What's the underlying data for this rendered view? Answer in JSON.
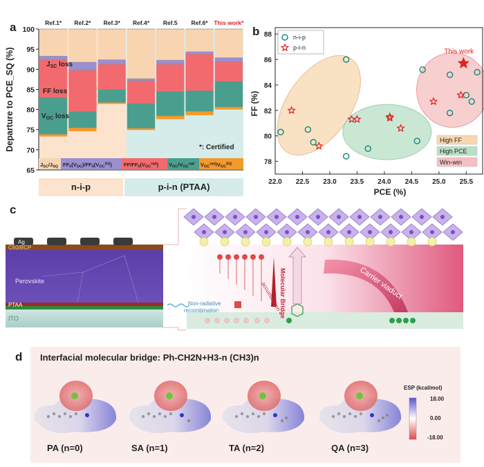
{
  "panel_a": {
    "letter": "a",
    "refs": [
      "Ref.1*",
      "Ref.2*",
      "Ref.3*",
      "Ref.4*",
      "Ref.5",
      "Ref.6*",
      "This work*"
    ],
    "ylabel": "Departure to PCE_SQ (%)",
    "yticks": [
      "65",
      "70",
      "75",
      "80",
      "85",
      "90",
      "95",
      "100"
    ],
    "loss_labels": [
      "J_SC loss",
      "FF loss",
      "V_OC loss"
    ],
    "certified_note": "*: Certified",
    "legend": [
      "J_SC/J_SQ",
      "FF_0(V_OC)/FF_0(V_OC^SQ)",
      "FF/FF_0(V_OC^rad)",
      "V_OC/V_OC^rad",
      "V_OC^rad/V_OC^SQ"
    ],
    "group_labels": [
      "n-i-p",
      "p-i-n (PTAA)"
    ],
    "colors": {
      "jsc": "#f8d5b0",
      "ff0": "#9a8fd0",
      "ff": "#f26a6e",
      "voc": "#4a9e8e",
      "vocrad": "#f39a2a",
      "nip_bg": "#fbe3cd",
      "pin_bg": "#d5ecea"
    }
  },
  "chart_data": {
    "type": "bar",
    "categories": [
      "Ref.1*",
      "Ref.2*",
      "Ref.3*",
      "Ref.4*",
      "Ref.5",
      "Ref.6*",
      "This work*"
    ],
    "series": [
      {
        "name": "V_OC^rad/V_OC^SQ",
        "values": [
          [
            73.3,
            73.9
          ],
          [
            74.6,
            75.5
          ],
          [
            81.4,
            81.8
          ],
          [
            74.9,
            75.4
          ],
          [
            77.6,
            78.5
          ],
          [
            78.6,
            79.6
          ],
          [
            80.0,
            80.7
          ]
        ]
      },
      {
        "name": "V_OC/V_OC^rad",
        "values": [
          [
            73.9,
            83.0
          ],
          [
            75.5,
            79.5
          ],
          [
            81.8,
            85.0
          ],
          [
            75.4,
            81.5
          ],
          [
            78.5,
            84.5
          ],
          [
            79.6,
            84.7
          ],
          [
            80.7,
            87.0
          ]
        ]
      },
      {
        "name": "FF/FF_0(V_OC^rad)",
        "values": [
          [
            83.0,
            92.4
          ],
          [
            79.5,
            89.8
          ],
          [
            85.0,
            91.3
          ],
          [
            81.5,
            87.2
          ],
          [
            84.5,
            91.3
          ],
          [
            84.7,
            93.8
          ],
          [
            87.0,
            91.9
          ]
        ]
      },
      {
        "name": "FF_0(V_OC)/FF_0(V_OC^SQ)",
        "values": [
          [
            92.4,
            93.3
          ],
          [
            89.8,
            91.8
          ],
          [
            91.3,
            92.4
          ],
          [
            87.2,
            87.7
          ],
          [
            91.3,
            92.3
          ],
          [
            93.8,
            94.4
          ],
          [
            91.9,
            92.9
          ]
        ]
      },
      {
        "name": "J_SC/J_SQ",
        "values": [
          [
            93.3,
            100
          ],
          [
            91.8,
            100
          ],
          [
            92.4,
            100
          ],
          [
            87.7,
            100
          ],
          [
            92.3,
            100
          ],
          [
            94.4,
            100
          ],
          [
            92.9,
            100
          ]
        ]
      }
    ],
    "ylim": [
      65,
      100
    ]
  },
  "panel_b": {
    "letter": "b",
    "xlabel": "PCE (%)",
    "ylabel": "FF (%)",
    "xticks": [
      "22.0",
      "22.5",
      "23.0",
      "23.5",
      "24.0",
      "24.5",
      "25.0",
      "25.5"
    ],
    "yticks": [
      "78",
      "80",
      "82",
      "84",
      "86",
      "88"
    ],
    "xlim": [
      22.0,
      25.8
    ],
    "ylim": [
      77,
      88.5
    ],
    "legend": [
      "n-i-p",
      "p-i-n"
    ],
    "this_work_label": "This work",
    "region_labels": [
      "High FF",
      "High PCE",
      "Win-win"
    ],
    "nip_points": [
      [
        22.1,
        80.3
      ],
      [
        22.6,
        80.5
      ],
      [
        22.7,
        79.5
      ],
      [
        23.3,
        78.4
      ],
      [
        23.3,
        86.0
      ],
      [
        23.7,
        79.0
      ],
      [
        24.6,
        79.6
      ],
      [
        24.7,
        85.2
      ],
      [
        25.2,
        81.8
      ],
      [
        25.2,
        84.8
      ],
      [
        25.5,
        83.2
      ],
      [
        25.6,
        82.7
      ],
      [
        25.7,
        85.0
      ]
    ],
    "pin_points": [
      [
        22.3,
        82.0
      ],
      [
        22.8,
        79.2
      ],
      [
        23.4,
        81.3
      ],
      [
        23.5,
        81.3
      ],
      [
        24.1,
        81.5
      ],
      [
        24.1,
        81.4
      ],
      [
        24.3,
        80.6
      ],
      [
        24.9,
        82.7
      ],
      [
        25.4,
        83.2
      ]
    ],
    "this_work_point": [
      25.45,
      85.7
    ]
  },
  "panel_c": {
    "letter": "c",
    "layers": [
      "Ag",
      "C60/BCP",
      "Perovskite",
      "PTAA",
      "ITO"
    ],
    "labels": [
      "Non-radiative recombination",
      "accumulation",
      "Molecular Bridge",
      "Carrier viaduct"
    ],
    "hole": "h"
  },
  "panel_d": {
    "letter": "d",
    "title": "Interfacial molecular bridge: Ph-CH2N+H3-n (CH3)n",
    "molecules": [
      "PA (n=0)",
      "SA (n=1)",
      "TA (n=2)",
      "QA (n=3)"
    ],
    "colorbar_title": "ESP (kcal/mol)",
    "colorbar_ticks": [
      "18.00",
      "0.00",
      "-18.00"
    ]
  }
}
